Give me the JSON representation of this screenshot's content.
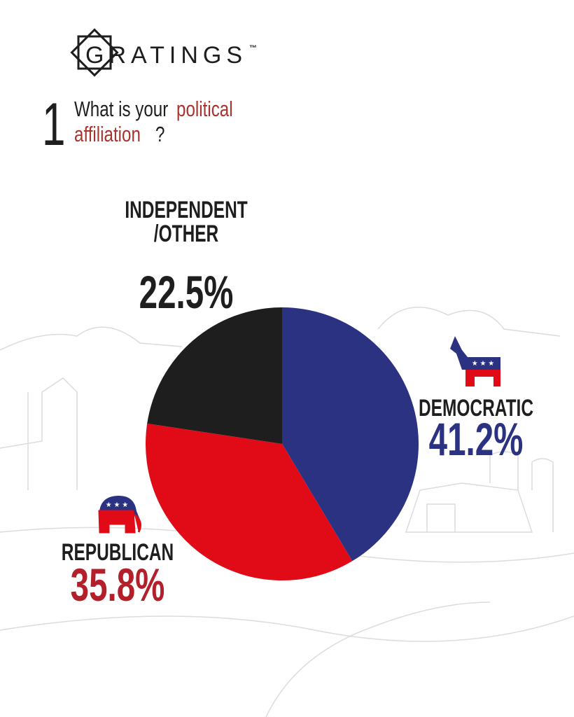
{
  "logo": {
    "text": "GRATINGS",
    "trademark": "™"
  },
  "question": {
    "number": "1",
    "line1": "What is your",
    "highlight1": "political",
    "highlight2": "affiliation",
    "mark": "?"
  },
  "chart_data": {
    "type": "pie",
    "categories": [
      "DEMOCRATIC",
      "REPUBLICAN",
      "INDEPENDENT\n/OTHER"
    ],
    "values": [
      41.2,
      35.8,
      22.5
    ],
    "value_labels": [
      "41.2%",
      "35.8%",
      "22.5%"
    ],
    "colors": [
      "#2b3282",
      "#e10b18",
      "#1e1e1e"
    ]
  }
}
